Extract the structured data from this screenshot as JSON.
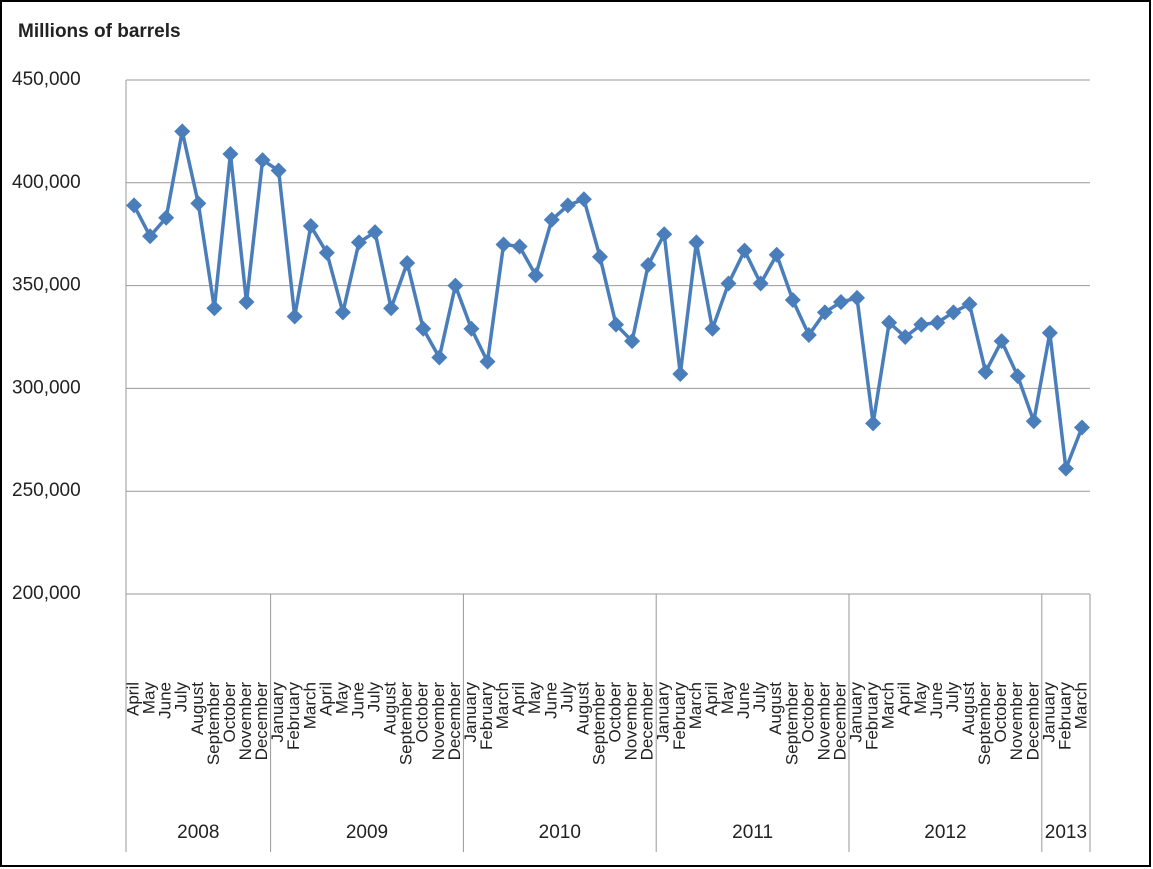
{
  "chart_data": {
    "type": "line",
    "y_label": "Millions of barrels",
    "categories": [
      "April",
      "May",
      "June",
      "July",
      "August",
      "September",
      "October",
      "November",
      "December",
      "January",
      "February",
      "March",
      "April",
      "May",
      "June",
      "July",
      "August",
      "September",
      "October",
      "November",
      "December",
      "January",
      "February",
      "March",
      "April",
      "May",
      "June",
      "July",
      "August",
      "September",
      "October",
      "November",
      "December",
      "January",
      "February",
      "March",
      "April",
      "May",
      "June",
      "July",
      "August",
      "September",
      "October",
      "November",
      "December",
      "January",
      "February",
      "March",
      "April",
      "May",
      "June",
      "July",
      "August",
      "September",
      "October",
      "November",
      "December",
      "January",
      "February",
      "March"
    ],
    "groups": [
      {
        "label": "2008",
        "size": 9
      },
      {
        "label": "2009",
        "size": 12
      },
      {
        "label": "2010",
        "size": 12
      },
      {
        "label": "2011",
        "size": 12
      },
      {
        "label": "2012",
        "size": 12
      },
      {
        "label": "2013",
        "size": 3
      }
    ],
    "series": [
      {
        "name": "Millions of barrels",
        "color": "#4a7ebb",
        "values": [
          389000,
          374000,
          383000,
          425000,
          390000,
          339000,
          414000,
          342000,
          411000,
          406000,
          335000,
          379000,
          366000,
          337000,
          371000,
          376000,
          339000,
          361000,
          329000,
          315000,
          350000,
          329000,
          313000,
          370000,
          369000,
          355000,
          382000,
          389000,
          392000,
          364000,
          331000,
          323000,
          360000,
          375000,
          307000,
          371000,
          329000,
          351000,
          367000,
          351000,
          365000,
          343000,
          326000,
          337000,
          342000,
          344000,
          283000,
          332000,
          325000,
          331000,
          332000,
          337000,
          341000,
          308000,
          323000,
          306000,
          284000,
          327000,
          261000,
          281000
        ]
      }
    ],
    "ylim": [
      200000,
      450000
    ],
    "yticks": [
      {
        "value": 200000,
        "label": "200,000"
      },
      {
        "value": 250000,
        "label": "250,000"
      },
      {
        "value": 300000,
        "label": "300,000"
      },
      {
        "value": 350000,
        "label": "350,000"
      },
      {
        "value": 400000,
        "label": "400,000"
      },
      {
        "value": 450000,
        "label": "450,000"
      }
    ],
    "grid": true
  }
}
